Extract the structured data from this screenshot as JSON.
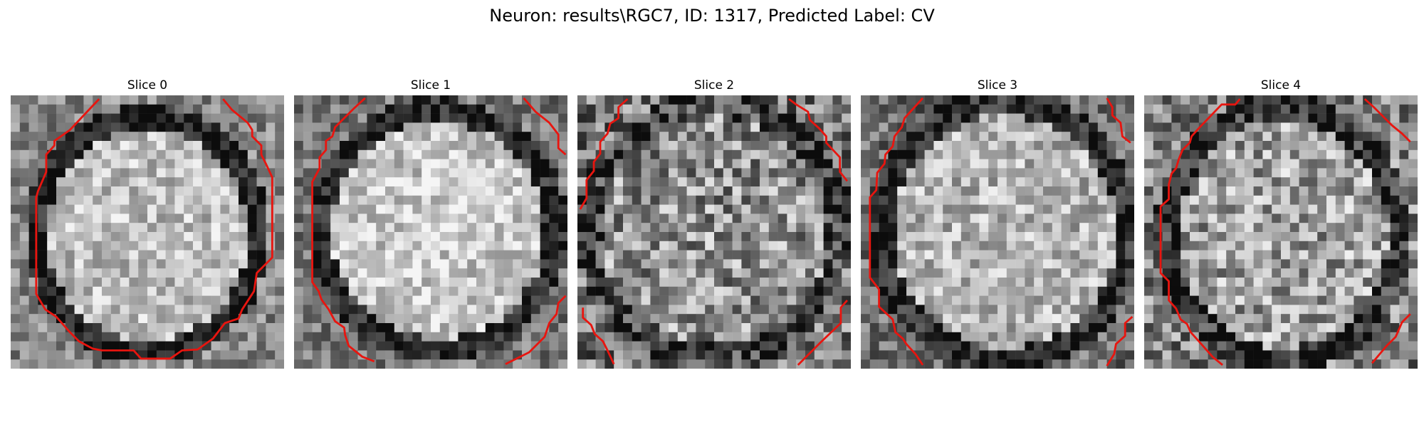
{
  "figure": {
    "title": "Neuron: results\\RGC7, ID: 1317, Predicted Label: CV"
  },
  "panels": [
    {
      "title": "Slice 0",
      "image": "grayscale neuron soma slice with red contour"
    },
    {
      "title": "Slice 1",
      "image": "grayscale neuron soma slice with red contour"
    },
    {
      "title": "Slice 2",
      "image": "grayscale neuron soma slice with red contour"
    },
    {
      "title": "Slice 3",
      "image": "grayscale neuron soma slice with red contour"
    },
    {
      "title": "Slice 4",
      "image": "grayscale neuron soma slice with red contour"
    }
  ],
  "colors": {
    "contour": "#e8150f",
    "background": "#ffffff"
  }
}
